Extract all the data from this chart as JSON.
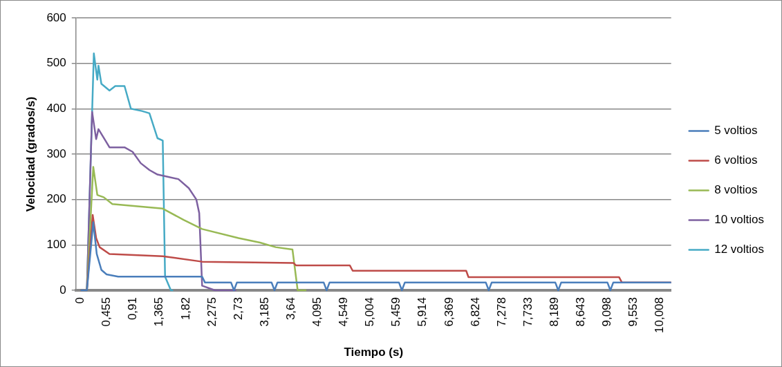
{
  "chart_data": {
    "type": "line",
    "xlabel": "Tiempo (s)",
    "ylabel": "Velocidad (grados/s)",
    "xlim": [
      -0.08,
      10.2
    ],
    "ylim": [
      0,
      600
    ],
    "yticks": [
      0,
      100,
      200,
      300,
      400,
      500,
      600
    ],
    "xticks": [
      {
        "value": 0,
        "label": "0"
      },
      {
        "value": 0.455,
        "label": "0,455"
      },
      {
        "value": 0.91,
        "label": "0,91"
      },
      {
        "value": 1.365,
        "label": "1,365"
      },
      {
        "value": 1.82,
        "label": "1,82"
      },
      {
        "value": 2.275,
        "label": "2,275"
      },
      {
        "value": 2.73,
        "label": "2,73"
      },
      {
        "value": 3.185,
        "label": "3,185"
      },
      {
        "value": 3.64,
        "label": "3,64"
      },
      {
        "value": 4.095,
        "label": "4,095"
      },
      {
        "value": 4.549,
        "label": "4,549"
      },
      {
        "value": 5.004,
        "label": "5,004"
      },
      {
        "value": 5.459,
        "label": "5,459"
      },
      {
        "value": 5.914,
        "label": "5,914"
      },
      {
        "value": 6.369,
        "label": "6,369"
      },
      {
        "value": 6.824,
        "label": "6,824"
      },
      {
        "value": 7.278,
        "label": "7,278"
      },
      {
        "value": 7.733,
        "label": "7,733"
      },
      {
        "value": 8.189,
        "label": "8,189"
      },
      {
        "value": 8.643,
        "label": "8,643"
      },
      {
        "value": 9.098,
        "label": "9,098"
      },
      {
        "value": 9.553,
        "label": "9,553"
      },
      {
        "value": 10.008,
        "label": "10,008"
      }
    ],
    "grid": "y",
    "legend": "right",
    "marker": "none",
    "line_style": "solid",
    "series": [
      {
        "name": "5 voltios",
        "color": "#4a7ebb",
        "x": [
          0,
          0.11,
          0.22,
          0.28,
          0.36,
          0.45,
          0.65,
          0.95,
          1.5,
          2.1,
          2.15,
          2.6,
          2.65,
          2.7,
          3.3,
          3.35,
          3.4,
          4.2,
          4.25,
          4.3,
          5.5,
          5.55,
          5.6,
          7.0,
          7.05,
          7.1,
          8.2,
          8.25,
          8.3,
          9.1,
          9.15,
          9.2,
          10.2
        ],
        "values": [
          0,
          0,
          150,
          80,
          45,
          35,
          30,
          30,
          30,
          30,
          17,
          17,
          0,
          17,
          17,
          0,
          17,
          17,
          0,
          17,
          17,
          0,
          17,
          17,
          0,
          17,
          17,
          0,
          17,
          17,
          0,
          17,
          17
        ]
      },
      {
        "name": "6 voltios",
        "color": "#be4b48",
        "x": [
          0,
          0.11,
          0.21,
          0.27,
          0.33,
          0.5,
          1.42,
          2.1,
          3.68,
          3.72,
          4.65,
          4.7,
          6.66,
          6.7,
          9.3,
          9.35,
          10.2
        ],
        "values": [
          0,
          0,
          166,
          115,
          95,
          80,
          75,
          63,
          60,
          55,
          55,
          43,
          43,
          29,
          29,
          17,
          17
        ]
      },
      {
        "name": "8 voltios",
        "color": "#98b954",
        "x": [
          0,
          0.11,
          0.22,
          0.29,
          0.4,
          0.55,
          1.42,
          1.78,
          2.1,
          2.73,
          3.1,
          3.37,
          3.66,
          3.75,
          3.9
        ],
        "values": [
          0,
          0,
          272,
          210,
          205,
          190,
          180,
          155,
          135,
          115,
          105,
          95,
          90,
          0,
          0
        ]
      },
      {
        "name": "10 voltios",
        "color": "#7d60a0",
        "x": [
          0,
          0.11,
          0.2,
          0.27,
          0.31,
          0.43,
          0.5,
          0.76,
          0.9,
          1.04,
          1.19,
          1.33,
          1.69,
          1.87,
          2.0,
          2.05,
          2.1,
          2.32,
          2.69
        ],
        "values": [
          0,
          0,
          393,
          333,
          355,
          330,
          315,
          315,
          305,
          280,
          265,
          255,
          245,
          225,
          200,
          170,
          10,
          0,
          0
        ]
      },
      {
        "name": "12 voltios",
        "color": "#46aac5",
        "x": [
          0,
          0.11,
          0.23,
          0.29,
          0.31,
          0.36,
          0.5,
          0.6,
          0.76,
          0.87,
          1.06,
          1.19,
          1.33,
          1.42,
          1.46,
          1.56,
          1.6
        ],
        "values": [
          0,
          0,
          522,
          464,
          495,
          455,
          440,
          450,
          450,
          400,
          395,
          390,
          335,
          330,
          30,
          0,
          0
        ]
      }
    ]
  }
}
